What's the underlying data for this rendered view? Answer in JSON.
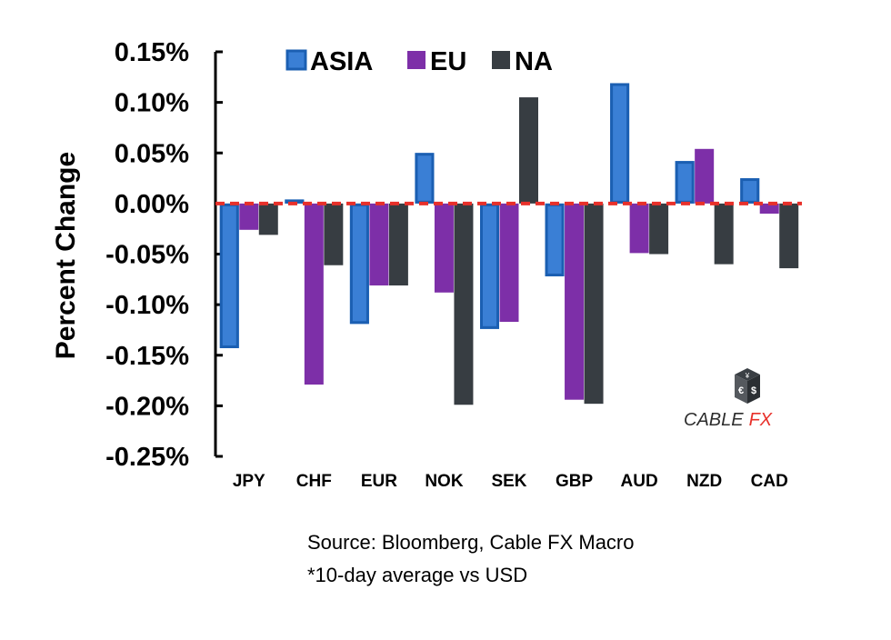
{
  "chart_data": {
    "type": "bar",
    "title": "",
    "xlabel": "",
    "ylabel": "Percent Change",
    "ylim": [
      -0.25,
      0.15
    ],
    "yticks": [
      0.15,
      0.1,
      0.05,
      0.0,
      -0.05,
      -0.1,
      -0.15,
      -0.2,
      -0.25
    ],
    "ytick_labels": [
      "0.15%",
      "0.10%",
      "0.05%",
      "0.00%",
      "-0.05%",
      "-0.10%",
      "-0.15%",
      "-0.20%",
      "-0.25%"
    ],
    "categories": [
      "JPY",
      "CHF",
      "EUR",
      "NOK",
      "SEK",
      "GBP",
      "AUD",
      "NZD",
      "CAD"
    ],
    "series": [
      {
        "name": "ASIA",
        "color": "#3a7fd5",
        "values": [
          -0.143,
          0.004,
          -0.119,
          0.05,
          -0.124,
          -0.072,
          0.119,
          0.042,
          0.025
        ]
      },
      {
        "name": "EU",
        "color": "#7d2fa8",
        "values": [
          -0.026,
          -0.179,
          -0.081,
          -0.088,
          -0.117,
          -0.194,
          -0.049,
          0.054,
          -0.01
        ]
      },
      {
        "name": "NA",
        "color": "#373d42",
        "values": [
          -0.031,
          -0.061,
          -0.081,
          -0.199,
          0.105,
          -0.198,
          -0.05,
          -0.06,
          -0.064
        ]
      }
    ],
    "zero_line_color": "#e8302a",
    "legend_position": "top"
  },
  "notes": {
    "source": "Source: Bloomberg, Cable FX Macro",
    "average": "*10-day average vs USD"
  },
  "brand": {
    "name_part1": "CABLE",
    "name_part2": "FX",
    "cube_symbols": [
      "€",
      "$",
      "¥"
    ],
    "accent_color": "#e8302a"
  }
}
